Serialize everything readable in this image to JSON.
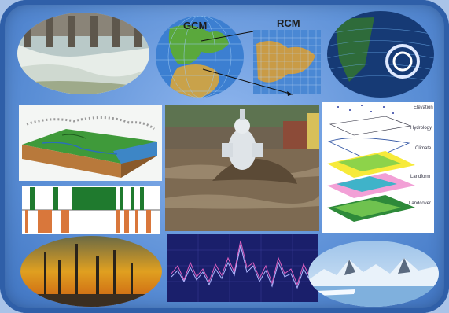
{
  "panels": {
    "gcm_label": "GCM",
    "rcm_label": "RCM",
    "layer_labels": [
      "Elevation",
      "Hydrology",
      "Climate",
      "Landform",
      "Landcover"
    ]
  },
  "colors": {
    "frame": "#3f74c2",
    "dam_water": "#dfe8e2",
    "ocean": "#2a5fa6",
    "land": "#5aa83c",
    "flood": "#7d6a52",
    "bar_green": "#1f7a2e",
    "bar_orange": "#d9773b",
    "fire": "#e0a020",
    "chart_bg": "#1a1f6b",
    "ice": "#e9f2fa"
  }
}
